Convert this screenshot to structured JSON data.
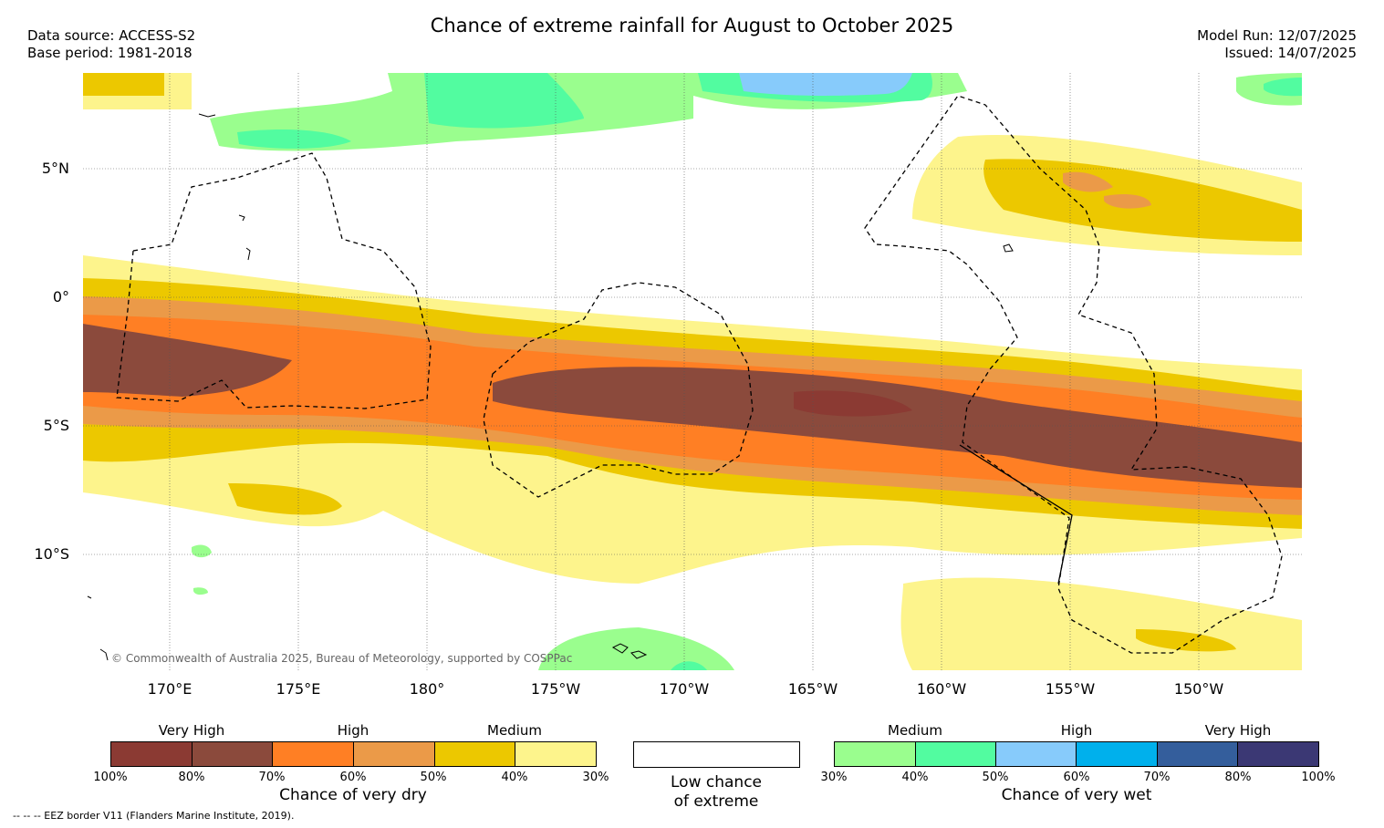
{
  "title": "Chance of extreme rainfall for August to October 2025",
  "meta_left": {
    "data_source": "Data source: ACCESS-S2",
    "base_period": "Base period: 1981-2018"
  },
  "meta_right": {
    "model_run": "Model Run: 12/07/2025",
    "issued": "Issued: 14/07/2025"
  },
  "latitude_labels": [
    "5°N",
    "0°",
    "5°S",
    "10°S"
  ],
  "longitude_labels": [
    "170°E",
    "175°E",
    "180°",
    "175°W",
    "170°W",
    "165°W",
    "160°W",
    "155°W",
    "150°W"
  ],
  "copyright": "© Commonwealth of Australia 2025, Bureau of Meteorology, supported by COSPPac",
  "legend_dry": {
    "categories": [
      "Very High",
      "High",
      "Medium"
    ],
    "ticks": [
      "100%",
      "80%",
      "70%",
      "60%",
      "50%",
      "40%",
      "30%"
    ],
    "colors": [
      "#8b3a33",
      "#8b4a3c",
      "#ff7f24",
      "#eb9a48",
      "#ecc800",
      "#fdf48c"
    ],
    "label": "Chance of very dry"
  },
  "legend_low": {
    "label_line1": "Low chance",
    "label_line2": "of extreme",
    "color": "#ffffff"
  },
  "legend_wet": {
    "categories": [
      "Medium",
      "High",
      "Very High"
    ],
    "ticks": [
      "30%",
      "40%",
      "50%",
      "60%",
      "70%",
      "80%",
      "100%"
    ],
    "colors": [
      "#9afe8e",
      "#52fca0",
      "#87cbfb",
      "#00b0ec",
      "#345e9c",
      "#3b3874"
    ],
    "label": "Chance of very wet"
  },
  "footer": "-- -- -- EEZ border V11 (Flanders Marine Institute, 2019).",
  "colors": {
    "very_dry_high": "#8b4a3c",
    "dry_high": "#ff7f24",
    "dry_mid_high": "#eb9a48",
    "dry_medium": "#ecc800",
    "dry_low": "#fdf48c",
    "wet_medium": "#9afe8e",
    "wet_mid": "#52fca0",
    "wet_high": "#87cbfb"
  }
}
